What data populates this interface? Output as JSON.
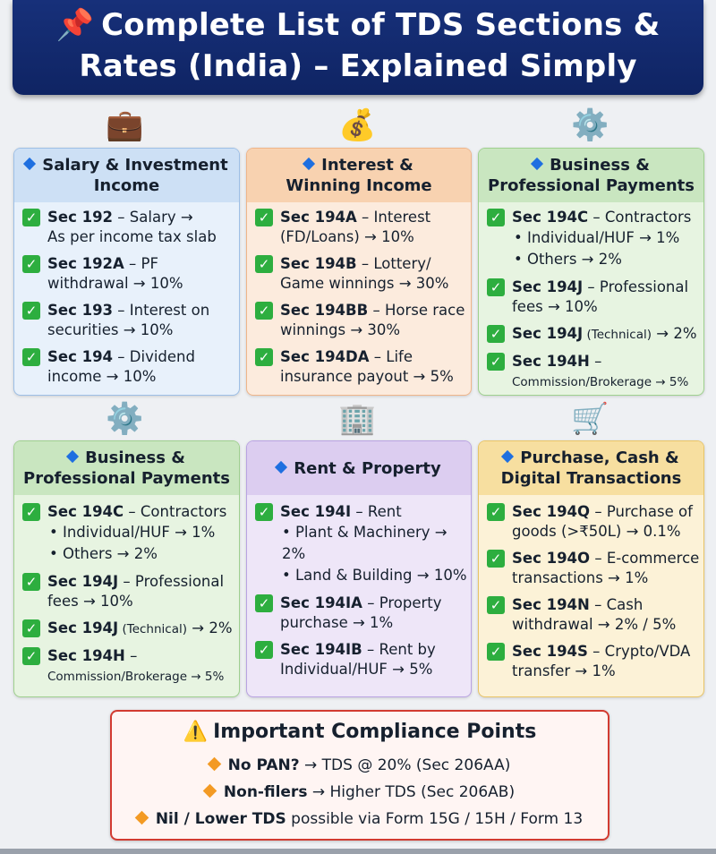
{
  "banner": {
    "pin_icon": "pushpin-icon",
    "title_line1": "Complete List of TDS Sections &",
    "title_line2": "Rates (India) – Explained Simply"
  },
  "cards": [
    {
      "icon": "briefcase-icon",
      "heading_line1": "Salary & Investment",
      "heading_line2": "Income",
      "entries": [
        {
          "section": "Sec 192",
          "text": " – Salary →",
          "line2": "As per income tax slab"
        },
        {
          "section": "Sec 192A",
          "text": " – PF",
          "line2": "withdrawal → 10%"
        },
        {
          "section": "Sec 193",
          "text": " – Interest on",
          "line2": "securities → 10%"
        },
        {
          "section": "Sec 194",
          "text": " – Dividend",
          "line2": "income → 10%"
        }
      ]
    },
    {
      "icon": "money-bag-icon",
      "heading_line1": "Interest &",
      "heading_line2": "Winning Income",
      "entries": [
        {
          "section": "Sec 194A",
          "text": " – Interest",
          "line2": "(FD/Loans) → 10%"
        },
        {
          "section": "Sec 194B",
          "text": " – Lottery/",
          "line2": "Game winnings → 30%"
        },
        {
          "section": "Sec 194BB",
          "text": " – Horse race",
          "line2": "winnings → 30%"
        },
        {
          "section": "Sec 194DA",
          "text": " – Life",
          "line2": "insurance payout → 5%"
        }
      ]
    },
    {
      "icon": "gears-icon",
      "heading_line1": "Business &",
      "heading_line2": "Professional Payments",
      "entries": [
        {
          "section": "Sec 194C",
          "text": " – Contractors",
          "sub1": "• Individual/HUF → 1%",
          "sub2": "• Others → 2%"
        },
        {
          "section": "Sec 194J",
          "text": " – Professional",
          "line2": "fees → 10%"
        },
        {
          "section": "Sec 194J",
          "text_small": " (Technical)",
          "text": " → 2%"
        },
        {
          "section": "Sec 194H",
          "text": " –",
          "line2_small": "Commission/Brokerage → 5%"
        }
      ]
    },
    {
      "icon": "gears-icon",
      "heading_line1": "Business &",
      "heading_line2": "Professional Payments",
      "entries": [
        {
          "section": "Sec 194C",
          "text": " – Contractors",
          "sub1": "• Individual/HUF → 1%",
          "sub2": "• Others → 2%"
        },
        {
          "section": "Sec 194J",
          "text": " – Professional",
          "line2": "fees → 10%"
        },
        {
          "section": "Sec 194J",
          "text_small": " (Technical)",
          "text": " → 2%"
        },
        {
          "section": "Sec 194H",
          "text": " –",
          "line2_small": "Commission/Brokerage → 5%"
        }
      ]
    },
    {
      "icon": "office-building-icon",
      "heading_line1": "Rent & Property",
      "entries": [
        {
          "section": "Sec 194I",
          "text": " – Rent",
          "sub1": "• Plant & Machinery → 2%",
          "sub2": "• Land & Building → 10%"
        },
        {
          "section": "Sec 194IA",
          "text": " – Property",
          "line2": "purchase → 1%"
        },
        {
          "section": "Sec 194IB",
          "text": " – Rent by",
          "line2": "Individual/HUF → 5%"
        }
      ]
    },
    {
      "icon": "shopping-cart-icon",
      "heading_line1": "Purchase, Cash &",
      "heading_line2": "Digital Transactions",
      "entries": [
        {
          "section": "Sec 194Q",
          "text": " – Purchase of",
          "line2": "goods (>₹50L) → 0.1%"
        },
        {
          "section": "Sec 194O",
          "text": " – E-commerce",
          "line2": "transactions → 1%"
        },
        {
          "section": "Sec 194N",
          "text": " – Cash",
          "line2": "withdrawal → 2% / 5%"
        },
        {
          "section": "Sec 194S",
          "text": " – Crypto/VDA",
          "line2": "transfer → 1%"
        }
      ]
    }
  ],
  "compliance": {
    "icon": "warning-icon",
    "title": "Important Compliance Points",
    "points": [
      {
        "bold": "No PAN?",
        "text": " → TDS @ 20% (Sec 206AA)"
      },
      {
        "bold": "Non-filers",
        "text": " → Higher TDS (Sec 206AB)"
      },
      {
        "bold": "Nil / Lower TDS",
        "text": " possible via Form 15G / 15H / Form 13"
      }
    ]
  }
}
